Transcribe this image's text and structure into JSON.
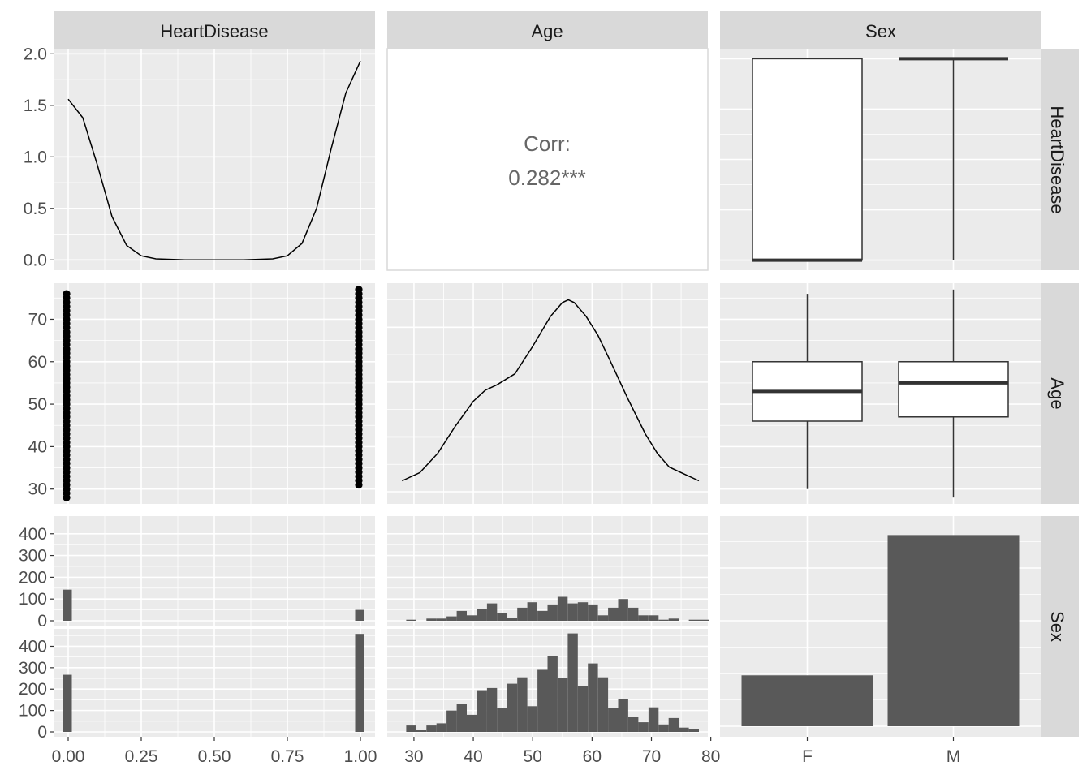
{
  "strips": {
    "columns": [
      "HeartDisease",
      "Age",
      "Sex"
    ],
    "rows": [
      "HeartDisease",
      "Age",
      "Sex"
    ]
  },
  "colors": {
    "panel_bg": "#EBEBEB",
    "strip_bg": "#D9D9D9",
    "grid": "#FFFFFF",
    "bar_fill": "#595959",
    "line": "#000000",
    "corr_text": "#666666",
    "axis_text": "#4D4D4D",
    "strip_text": "#1A1A1A"
  },
  "chart_data": [
    {
      "panel": "HeartDisease-HeartDisease",
      "type": "line",
      "x": [
        0.0,
        0.05,
        0.1,
        0.15,
        0.2,
        0.25,
        0.3,
        0.4,
        0.5,
        0.6,
        0.7,
        0.75,
        0.8,
        0.85,
        0.9,
        0.95,
        1.0
      ],
      "y": [
        1.56,
        1.38,
        0.92,
        0.42,
        0.14,
        0.04,
        0.01,
        0.0,
        0.0,
        0.0,
        0.01,
        0.04,
        0.16,
        0.5,
        1.08,
        1.62,
        1.93
      ],
      "xticks": [
        "0.00",
        "0.25",
        "0.50",
        "0.75",
        "1.00"
      ],
      "yticks": [
        "0.0",
        "0.5",
        "1.0",
        "1.5",
        "2.0"
      ],
      "xlim": [
        -0.05,
        1.05
      ],
      "ylim": [
        -0.1,
        2.05
      ]
    },
    {
      "panel": "Age-HeartDisease",
      "type": "table",
      "corr_label": "Corr:",
      "corr_value": "0.282***"
    },
    {
      "panel": "Sex-HeartDisease",
      "type": "box",
      "categories": [
        "F",
        "M"
      ],
      "box": [
        {
          "min": 0,
          "q1": 0,
          "median": 0,
          "q3": 1,
          "max": 1
        },
        {
          "min": 0,
          "q1": 1,
          "median": 1,
          "q3": 1,
          "max": 1
        }
      ],
      "ylim": [
        -0.05,
        1.05
      ]
    },
    {
      "panel": "HeartDisease-Age",
      "type": "scatter",
      "series": [
        {
          "x": 0,
          "ymin": 28,
          "ymax": 76
        },
        {
          "x": 1,
          "ymin": 31,
          "ymax": 77
        }
      ],
      "yticks": [
        "30",
        "40",
        "50",
        "60",
        "70"
      ],
      "xlim": [
        -0.05,
        1.05
      ],
      "ylim": [
        26.5,
        78.5
      ]
    },
    {
      "panel": "Age-Age",
      "type": "line",
      "x": [
        28,
        31,
        34,
        37,
        40,
        42,
        44,
        47,
        50,
        53,
        55,
        56,
        57,
        59,
        61,
        63,
        66,
        69,
        71,
        73,
        75,
        78
      ],
      "y": [
        0.002,
        0.0035,
        0.007,
        0.012,
        0.0165,
        0.0185,
        0.0195,
        0.0215,
        0.0265,
        0.032,
        0.0345,
        0.035,
        0.0345,
        0.032,
        0.0285,
        0.024,
        0.017,
        0.0105,
        0.007,
        0.0045,
        0.0035,
        0.002
      ],
      "xticks": [
        "30",
        "40",
        "50",
        "60",
        "70",
        "80"
      ],
      "xlim": [
        25.5,
        79.5
      ],
      "ylim": [
        0,
        0.037
      ]
    },
    {
      "panel": "Sex-Age",
      "type": "box",
      "categories": [
        "F",
        "M"
      ],
      "box": [
        {
          "min": 30,
          "q1": 46,
          "median": 53,
          "q3": 60,
          "max": 76
        },
        {
          "min": 28,
          "q1": 47,
          "median": 55,
          "q3": 60,
          "max": 77
        }
      ],
      "ylim": [
        26.5,
        78.5
      ]
    },
    {
      "panel": "HeartDisease-Sex",
      "type": "bar",
      "facets": [
        {
          "name": "F",
          "bars": [
            {
              "x": 0,
              "count": 143
            },
            {
              "x": 1,
              "count": 50
            }
          ],
          "yticks": [
            "0",
            "100",
            "200",
            "300",
            "400"
          ]
        },
        {
          "name": "M",
          "bars": [
            {
              "x": 0,
              "count": 267
            },
            {
              "x": 1,
              "count": 458
            }
          ],
          "yticks": [
            "0",
            "100",
            "200",
            "300",
            "400"
          ]
        }
      ],
      "xlim": [
        -0.05,
        1.05
      ],
      "ylim": [
        0,
        470
      ]
    },
    {
      "panel": "Age-Sex",
      "type": "bar",
      "bin_start": 27,
      "bin_width": 1.7,
      "facets": [
        {
          "name": "F",
          "counts": [
            0,
            5,
            0,
            10,
            10,
            20,
            45,
            25,
            55,
            80,
            35,
            15,
            60,
            85,
            45,
            75,
            110,
            80,
            85,
            75,
            25,
            60,
            100,
            60,
            25,
            25,
            5,
            10,
            0,
            5,
            5,
            0,
            0
          ]
        },
        {
          "name": "M",
          "counts": [
            0,
            30,
            10,
            30,
            40,
            100,
            130,
            80,
            195,
            205,
            110,
            225,
            255,
            120,
            290,
            355,
            250,
            460,
            215,
            320,
            255,
            110,
            155,
            70,
            45,
            115,
            35,
            65,
            20,
            15,
            0,
            0,
            0
          ]
        }
      ],
      "xticks": [
        "30",
        "40",
        "50",
        "60",
        "70",
        "80"
      ],
      "xlim": [
        25.5,
        79.5
      ],
      "ylim": [
        0,
        470
      ]
    },
    {
      "panel": "Sex-Sex",
      "type": "bar",
      "categories": [
        "F",
        "M"
      ],
      "values": [
        193,
        725
      ],
      "ylim": [
        0,
        760
      ]
    }
  ]
}
